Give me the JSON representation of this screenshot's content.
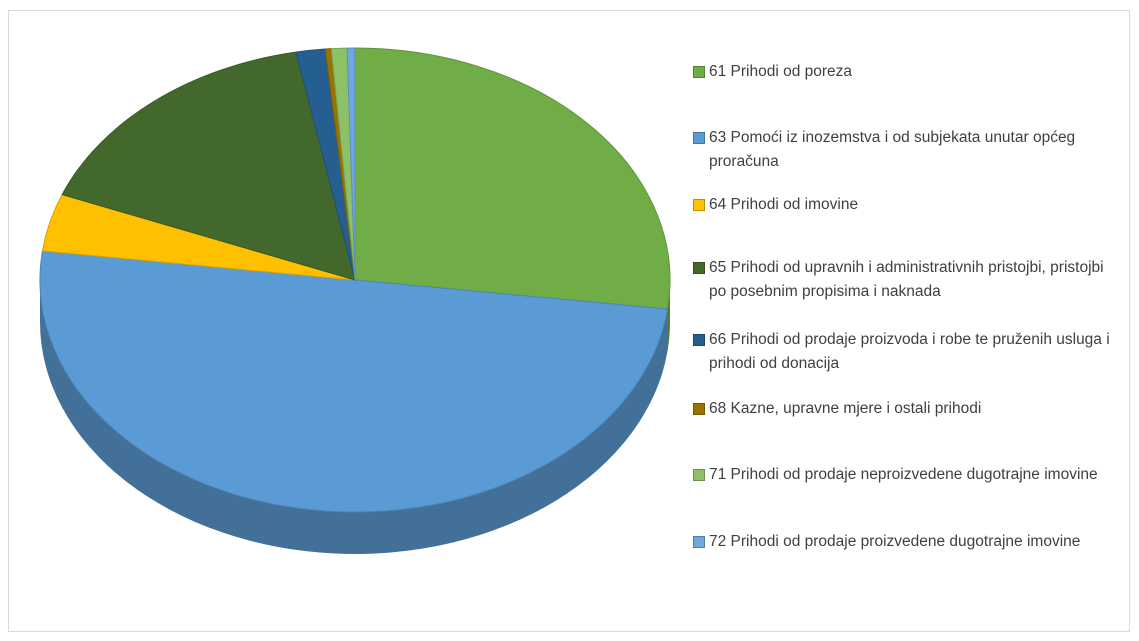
{
  "chart_data": {
    "type": "pie",
    "categories": [
      "61 Prihodi od poreza",
      "63 Pomoći iz inozemstva i od subjekata unutar općeg proračuna",
      "64 Prihodi od imovine",
      "65 Prihodi od upravnih i administrativnih pristojbi, pristojbi po posebnim propisima i naknada",
      "66 Prihodi od prodaje proizvoda i robe te pruženih usluga i prihodi od donacija",
      "68 Kazne, upravne mjere i ostali prihodi",
      "71 Prihodi od prodaje neproizvedene dugotrajne imovine",
      "72 Prihodi od prodaje proizvedene dugotrajne imovine"
    ],
    "values": [
      27,
      50,
      4,
      16,
      1.5,
      0.3,
      0.8,
      0.4
    ],
    "colors": [
      "#70ad47",
      "#5b9bd5",
      "#ffc000",
      "#43682b",
      "#255e91",
      "#997300",
      "#8cc168",
      "#6fa8dc"
    ],
    "legend": "right"
  }
}
